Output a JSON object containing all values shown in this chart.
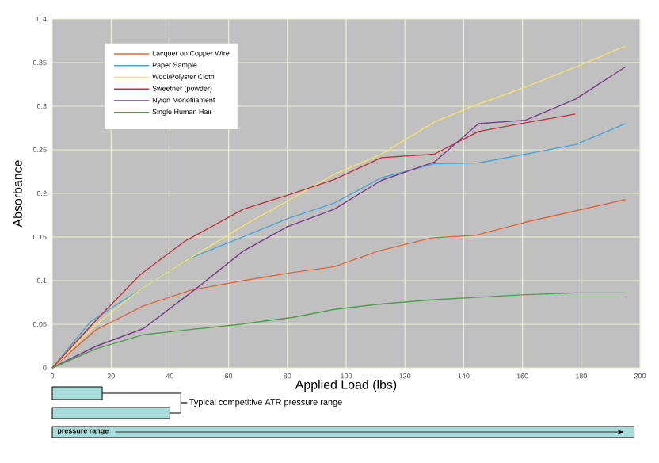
{
  "chart_data": {
    "type": "line",
    "xlabel": "Applied Load (lbs)",
    "ylabel": "Absorbance",
    "xlim": [
      0,
      200
    ],
    "ylim": [
      0,
      0.4
    ],
    "xticks": [
      0,
      20,
      40,
      60,
      80,
      100,
      120,
      140,
      160,
      180,
      200
    ],
    "yticks": [
      0,
      0.05,
      0.1,
      0.15,
      0.2,
      0.25,
      0.3,
      0.35,
      0.4
    ],
    "grid": true,
    "legend": "top left",
    "marker": "none",
    "line_style": "solid",
    "series": [
      {
        "name": "Lacquer on Copper Wire",
        "color": "#e0663a",
        "x": [
          0,
          15,
          31,
          47,
          65,
          81,
          96,
          111,
          129,
          144,
          161,
          178,
          195
        ],
        "values": [
          0,
          0.044,
          0.071,
          0.089,
          0.1,
          0.109,
          0.116,
          0.134,
          0.149,
          0.152,
          0.167,
          0.18,
          0.193
        ]
      },
      {
        "name": "Paper Sample",
        "color": "#4aa6d6",
        "x": [
          0,
          13,
          30,
          47,
          64,
          80,
          96,
          112,
          130,
          145,
          161,
          178,
          195
        ],
        "values": [
          0,
          0.053,
          0.09,
          0.126,
          0.149,
          0.171,
          0.189,
          0.218,
          0.234,
          0.235,
          0.245,
          0.256,
          0.28
        ]
      },
      {
        "name": "Wool/Polyster Cloth",
        "color": "#f0e46a",
        "x": [
          0,
          15,
          30,
          47,
          67,
          82,
          96,
          112,
          130,
          143,
          161,
          181,
          195
        ],
        "values": [
          0,
          0.05,
          0.09,
          0.126,
          0.167,
          0.195,
          0.222,
          0.245,
          0.282,
          0.3,
          0.322,
          0.349,
          0.369
        ]
      },
      {
        "name": "Sweetner (powder)",
        "color": "#c0303e",
        "x": [
          0,
          15,
          30,
          45,
          65,
          81,
          96,
          112,
          130,
          145,
          161,
          178
        ],
        "values": [
          0,
          0.055,
          0.107,
          0.145,
          0.182,
          0.199,
          0.216,
          0.241,
          0.245,
          0.271,
          0.281,
          0.291
        ]
      },
      {
        "name": "Nylon Monofilament",
        "color": "#7a3a8c",
        "x": [
          0,
          15,
          31,
          49,
          65,
          80,
          96,
          112,
          130,
          145,
          161,
          178,
          195
        ],
        "values": [
          0,
          0.025,
          0.045,
          0.091,
          0.134,
          0.162,
          0.182,
          0.215,
          0.236,
          0.28,
          0.284,
          0.308,
          0.345
        ]
      },
      {
        "name": "Single Human Hair",
        "color": "#4e9e4e",
        "x": [
          0,
          15,
          31,
          47,
          64,
          82,
          96,
          111,
          129,
          145,
          161,
          178,
          195
        ],
        "values": [
          0,
          0.022,
          0.038,
          0.044,
          0.05,
          0.058,
          0.067,
          0.073,
          0.078,
          0.081,
          0.084,
          0.086,
          0.086
        ]
      }
    ],
    "annotations": [
      "Typical competitive ATR pressure range",
      "pressure range"
    ]
  }
}
